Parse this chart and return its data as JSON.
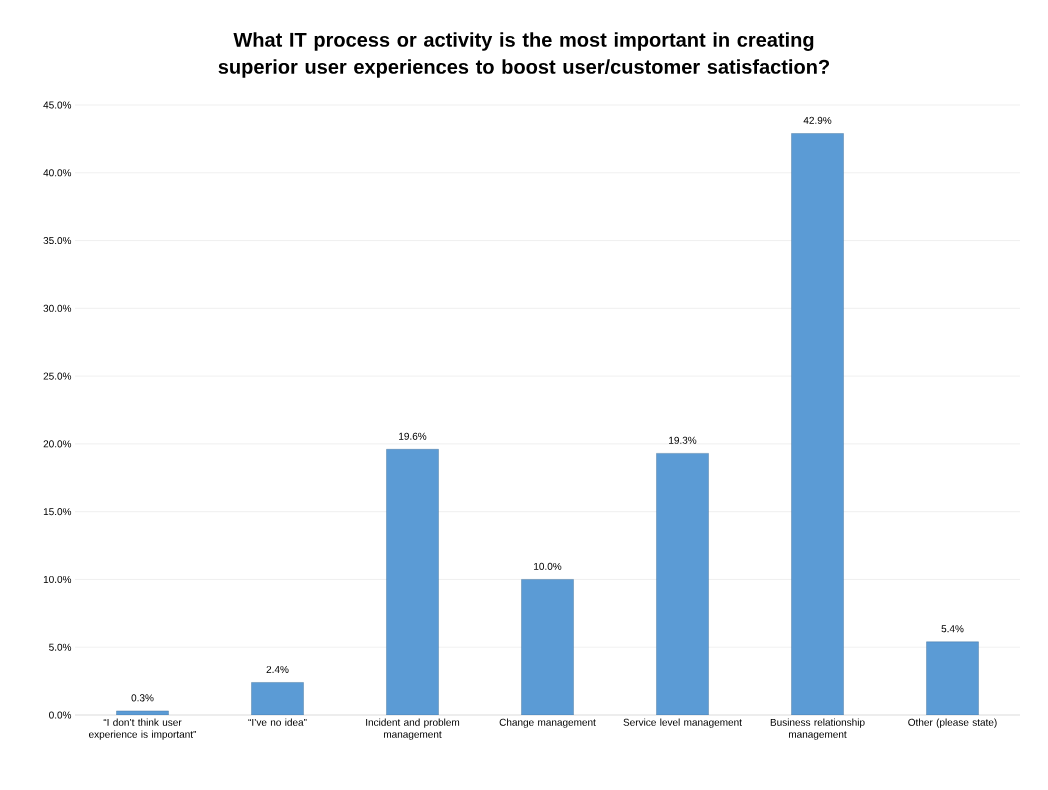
{
  "chart_data": {
    "type": "bar",
    "title": "What IT process or activity is the most important in creating superior user experiences to boost user/customer satisfaction?",
    "categories": [
      "“I don’t think user experience is important”",
      "“I’ve no idea”",
      "Incident and problem management",
      "Change management",
      "Service level management",
      "Business relationship management",
      "Other (please state)"
    ],
    "values": [
      0.3,
      2.4,
      19.6,
      10.0,
      19.3,
      42.9,
      5.4
    ],
    "value_labels": [
      "0.3%",
      "2.4%",
      "19.6%",
      "10.0%",
      "19.3%",
      "42.9%",
      "5.4%"
    ],
    "color": "#5b9bd5",
    "ylim": [
      0,
      45
    ],
    "yticks": [
      {
        "value": 0,
        "label": "0.0%"
      },
      {
        "value": 5,
        "label": "5.0%"
      },
      {
        "value": 10,
        "label": "10.0%"
      },
      {
        "value": 15,
        "label": "15.0%"
      },
      {
        "value": 20,
        "label": "20.0%"
      },
      {
        "value": 25,
        "label": "25.0%"
      },
      {
        "value": 30,
        "label": "30.0%"
      },
      {
        "value": 35,
        "label": "35.0%"
      },
      {
        "value": 40,
        "label": "40.0%"
      },
      {
        "value": 45,
        "label": "45.0%"
      }
    ],
    "grid": "y"
  }
}
